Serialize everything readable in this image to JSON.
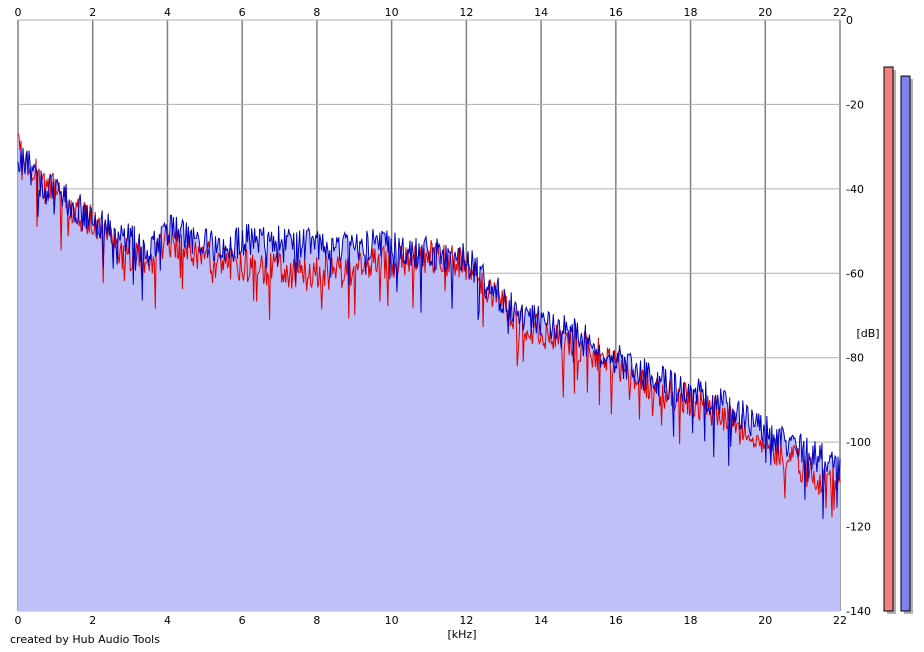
{
  "chart_data": {
    "type": "line",
    "xlabel": "[kHz]",
    "ylabel": "[dB]",
    "xlim": [
      0,
      22
    ],
    "ylim": [
      -140,
      0
    ],
    "xticks": [
      0,
      2,
      4,
      6,
      8,
      10,
      12,
      14,
      16,
      18,
      20,
      22
    ],
    "yticks": [
      0,
      -20,
      -40,
      -60,
      -80,
      -100,
      -120,
      -140
    ],
    "grid": true,
    "fill_color": "#c0c0f8",
    "series": [
      {
        "color": "#0000c0",
        "x": [
          0,
          0.25,
          0.5,
          0.75,
          1,
          1.5,
          2,
          2.5,
          3,
          3.5,
          4,
          4.5,
          5,
          5.5,
          6,
          6.5,
          7,
          7.5,
          8,
          8.5,
          9,
          9.5,
          10,
          10.5,
          11,
          11.5,
          12,
          12.5,
          13,
          13.5,
          14,
          14.5,
          15,
          15.5,
          16,
          16.5,
          17,
          17.5,
          18,
          18.5,
          19,
          19.5,
          20,
          20.5,
          21,
          21.5,
          22
        ],
        "values": [
          -32,
          -34,
          -38,
          -40,
          -40,
          -44,
          -47,
          -50,
          -52,
          -55,
          -50,
          -51,
          -53,
          -55,
          -52,
          -52,
          -52,
          -53,
          -53,
          -54,
          -53,
          -53,
          -54,
          -55,
          -55,
          -56,
          -57,
          -62,
          -66,
          -70,
          -72,
          -73,
          -75,
          -78,
          -80,
          -83,
          -85,
          -87,
          -88,
          -90,
          -92,
          -94,
          -97,
          -100,
          -102,
          -104,
          -106
        ]
      },
      {
        "color": "#e00000",
        "x": [
          0,
          0.25,
          0.5,
          0.75,
          1,
          1.5,
          2,
          2.5,
          3,
          3.5,
          4,
          4.5,
          5,
          5.5,
          6,
          6.5,
          7,
          7.5,
          8,
          8.5,
          9,
          9.5,
          10,
          10.5,
          11,
          11.5,
          12,
          12.5,
          13,
          13.5,
          14,
          14.5,
          15,
          15.5,
          16,
          16.5,
          17,
          17.5,
          18,
          18.5,
          19,
          19.5,
          20,
          20.5,
          21,
          21.5,
          22
        ],
        "values": [
          -30,
          -33,
          -37,
          -40,
          -40,
          -45,
          -48,
          -53,
          -56,
          -57,
          -52,
          -54,
          -56,
          -58,
          -58,
          -59,
          -59,
          -60,
          -60,
          -60,
          -59,
          -58,
          -57,
          -57,
          -56,
          -57,
          -58,
          -63,
          -67,
          -72,
          -74,
          -75,
          -77,
          -79,
          -82,
          -85,
          -87,
          -89,
          -90,
          -92,
          -94,
          -97,
          -100,
          -103,
          -106,
          -109,
          -108
        ]
      }
    ],
    "level_meters": [
      {
        "color": "#f08080",
        "level": 0.9
      },
      {
        "color": "#8080f0",
        "level": 0.89
      }
    ]
  },
  "footer": {
    "credit": "created by Hub Audio Tools"
  }
}
